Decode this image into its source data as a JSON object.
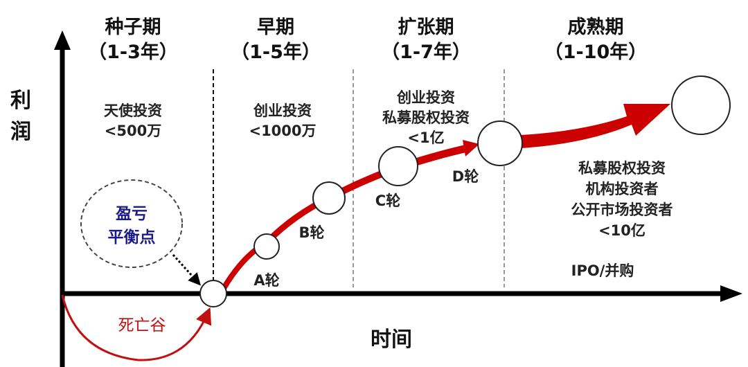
{
  "colors": {
    "curve": "#cc0000",
    "axis": "#000000",
    "breakeven_text": "#1a1a8c",
    "death_valley": "#c01010"
  },
  "axes": {
    "y_label_1": "利",
    "y_label_2": "润",
    "x_label": "时间"
  },
  "stages": [
    {
      "name": "种子期",
      "years": "（1-3年）",
      "investors": [
        "天使投资",
        "<500万"
      ]
    },
    {
      "name": "早期",
      "years": "（1-5年）",
      "investors": [
        "创业投资",
        "<1000万"
      ]
    },
    {
      "name": "扩张期",
      "years": "（1-7年）",
      "investors": [
        "创业投资",
        "私募股权投资",
        "<1亿"
      ]
    },
    {
      "name": "成熟期",
      "years": "（1-10年）",
      "investors": [
        "私募股权投资",
        "机构投资者",
        "公开市场投资者",
        "<10亿"
      ],
      "exit": "IPO/并购"
    }
  ],
  "rounds": [
    "A轮",
    "B轮",
    "C轮",
    "D轮"
  ],
  "breakeven": {
    "line1": "盈亏",
    "line2": "平衡点"
  },
  "death_valley": "死亡谷"
}
